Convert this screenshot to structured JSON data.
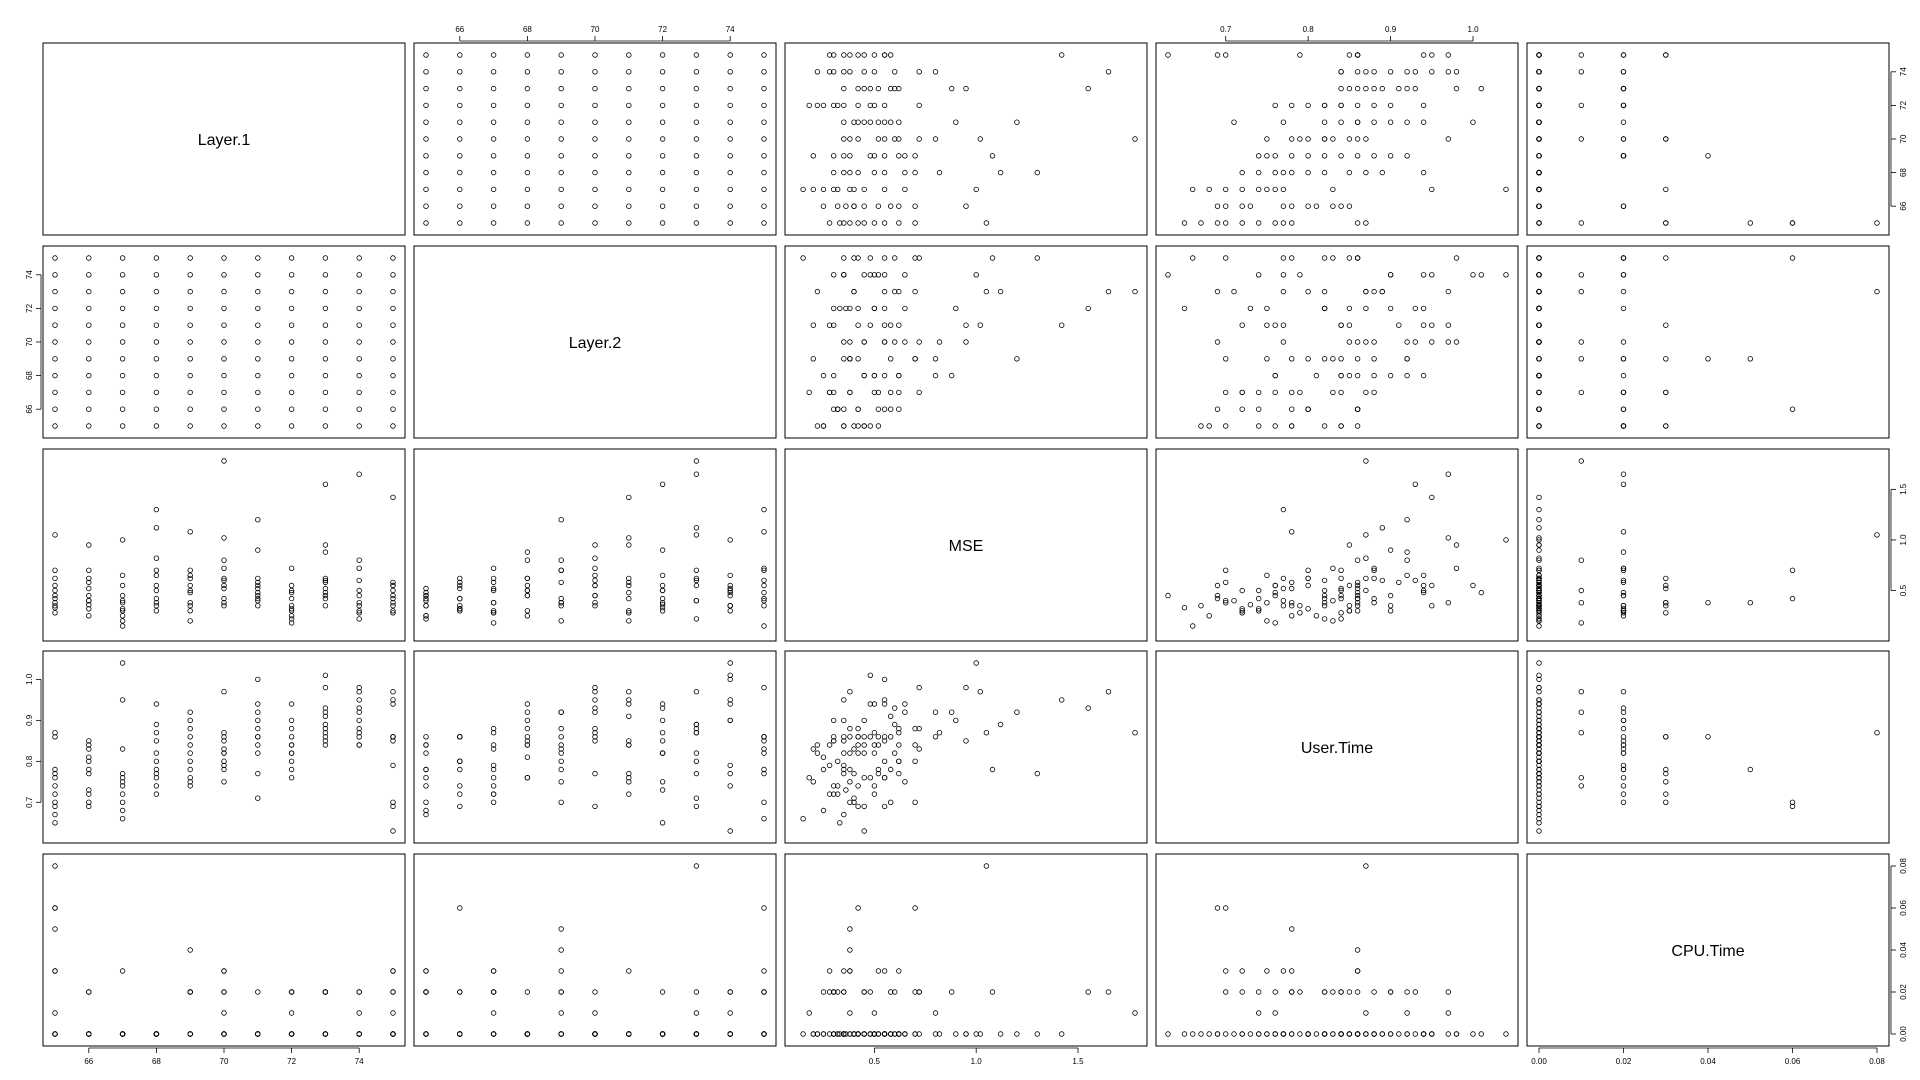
{
  "chart_data": {
    "type": "scatter-matrix",
    "variables": [
      "Layer.1",
      "Layer.2",
      "MSE",
      "User.Time",
      "CPU.Time"
    ],
    "ranges": {
      "Layer.1": [
        65,
        75
      ],
      "Layer.2": [
        65,
        75
      ],
      "MSE": [
        0.12,
        1.78
      ],
      "User.Time": [
        0.63,
        1.04
      ],
      "CPU.Time": [
        0,
        0.08
      ]
    },
    "ticks": {
      "Layer.1": [
        66,
        68,
        70,
        72,
        74
      ],
      "Layer.2": [
        66,
        68,
        70,
        72,
        74
      ],
      "MSE": [
        0.5,
        1.0,
        1.5
      ],
      "User.Time": [
        0.7,
        0.8,
        0.9,
        1.0
      ],
      "CPU.Time": [
        0.0,
        0.02,
        0.04,
        0.06,
        0.08
      ]
    },
    "tick_labels": {
      "Layer.1": [
        "66",
        "68",
        "70",
        "72",
        "74"
      ],
      "Layer.2": [
        "66",
        "68",
        "70",
        "72",
        "74"
      ],
      "MSE": [
        "0.5",
        "1.0",
        "1.5"
      ],
      "User.Time": [
        "0.7",
        "0.8",
        "0.9",
        "1.0"
      ],
      "CPU.Time": [
        "0.00",
        "0.02",
        "0.04",
        "0.06",
        "0.08"
      ]
    },
    "axis_sides": {
      "Layer.1": {
        "x": "bottom",
        "y": "right"
      },
      "Layer.2": {
        "x": "top",
        "y": "left"
      },
      "MSE": {
        "x": "bottom",
        "y": "right"
      },
      "User.Time": {
        "x": "top",
        "y": "left"
      },
      "CPU.Time": {
        "x": "bottom",
        "y": "right"
      }
    },
    "observations": [
      [
        65,
        65,
        0.35,
        0.67,
        0
      ],
      [
        65,
        66,
        0.42,
        0.69,
        0.06
      ],
      [
        65,
        67,
        0.28,
        0.72,
        0.03
      ],
      [
        65,
        68,
        0.55,
        0.76,
        0
      ],
      [
        65,
        69,
        0.38,
        0.78,
        0.05
      ],
      [
        65,
        70,
        0.45,
        0.86,
        0
      ],
      [
        65,
        71,
        0.62,
        0.77,
        0.03
      ],
      [
        65,
        72,
        0.33,
        0.65,
        0
      ],
      [
        65,
        73,
        1.05,
        0.87,
        0.08
      ],
      [
        65,
        74,
        0.5,
        0.74,
        0.01
      ],
      [
        65,
        75,
        0.7,
        0.7,
        0.06
      ],
      [
        66,
        65,
        0.4,
        0.7,
        0
      ],
      [
        66,
        66,
        0.32,
        0.72,
        0.02
      ],
      [
        66,
        67,
        0.58,
        0.78,
        0
      ],
      [
        66,
        68,
        0.25,
        0.81,
        0
      ],
      [
        66,
        69,
        0.7,
        0.84,
        0.02
      ],
      [
        66,
        70,
        0.45,
        0.69,
        0
      ],
      [
        66,
        71,
        0.95,
        0.85,
        0
      ],
      [
        66,
        72,
        0.36,
        0.73,
        0
      ],
      [
        66,
        73,
        0.62,
        0.8,
        0
      ],
      [
        66,
        74,
        0.52,
        0.77,
        0
      ],
      [
        66,
        75,
        0.4,
        0.83,
        0
      ],
      [
        67,
        65,
        0.25,
        0.68,
        0
      ],
      [
        67,
        66,
        0.32,
        0.74,
        0
      ],
      [
        67,
        67,
        0.38,
        0.7,
        0.03
      ],
      [
        67,
        68,
        0.45,
        0.76,
        0
      ],
      [
        67,
        69,
        0.2,
        0.83,
        0
      ],
      [
        67,
        70,
        0.55,
        0.95,
        0
      ],
      [
        67,
        71,
        0.3,
        0.72,
        0
      ],
      [
        67,
        72,
        0.65,
        0.75,
        0
      ],
      [
        67,
        73,
        0.4,
        0.77,
        0
      ],
      [
        67,
        74,
        1.0,
        1.04,
        0
      ],
      [
        67,
        75,
        0.15,
        0.66,
        0
      ],
      [
        68,
        65,
        0.42,
        0.74,
        0
      ],
      [
        68,
        66,
        0.35,
        0.78,
        0
      ],
      [
        68,
        67,
        0.5,
        0.72,
        0
      ],
      [
        68,
        68,
        0.3,
        0.85,
        0
      ],
      [
        68,
        69,
        0.7,
        0.8,
        0
      ],
      [
        68,
        70,
        0.82,
        0.87,
        0
      ],
      [
        68,
        71,
        0.55,
        0.76,
        0
      ],
      [
        68,
        72,
        0.38,
        0.82,
        0
      ],
      [
        68,
        73,
        1.12,
        0.89,
        0
      ],
      [
        68,
        74,
        0.65,
        0.94,
        0
      ],
      [
        68,
        75,
        1.3,
        0.77,
        0
      ],
      [
        69,
        65,
        0.48,
        0.76,
        0.02
      ],
      [
        69,
        66,
        0.55,
        0.8,
        0
      ],
      [
        69,
        67,
        0.3,
        0.74,
        0.02
      ],
      [
        69,
        68,
        0.62,
        0.84,
        0
      ],
      [
        69,
        69,
        0.38,
        0.86,
        0.04
      ],
      [
        69,
        70,
        0.65,
        0.92,
        0
      ],
      [
        69,
        71,
        0.2,
        0.75,
        0
      ],
      [
        69,
        72,
        0.5,
        0.82,
        0
      ],
      [
        69,
        73,
        0.7,
        0.88,
        0
      ],
      [
        69,
        74,
        0.35,
        0.9,
        0.02
      ],
      [
        69,
        75,
        1.08,
        0.78,
        0.02
      ],
      [
        70,
        65,
        0.52,
        0.78,
        0.03
      ],
      [
        70,
        66,
        0.62,
        0.8,
        0
      ],
      [
        70,
        67,
        0.72,
        0.83,
        0.02
      ],
      [
        70,
        68,
        0.8,
        0.86,
        0
      ],
      [
        70,
        69,
        0.38,
        0.75,
        0.03
      ],
      [
        70,
        70,
        0.55,
        0.85,
        0
      ],
      [
        70,
        71,
        1.02,
        0.97,
        0
      ],
      [
        70,
        72,
        0.42,
        0.82,
        0
      ],
      [
        70,
        73,
        1.78,
        0.87,
        0.01
      ],
      [
        70,
        74,
        0.35,
        0.79,
        0
      ],
      [
        70,
        75,
        0.6,
        0.82,
        0.02
      ],
      [
        71,
        65,
        0.45,
        0.82,
        0.02
      ],
      [
        71,
        66,
        0.58,
        0.86,
        0
      ],
      [
        71,
        67,
        0.52,
        0.84,
        0
      ],
      [
        71,
        68,
        0.62,
        0.88,
        0
      ],
      [
        71,
        69,
        1.2,
        0.92,
        0
      ],
      [
        71,
        70,
        0.35,
        0.77,
        0
      ],
      [
        71,
        71,
        0.48,
        0.94,
        0
      ],
      [
        71,
        72,
        0.9,
        0.9,
        0
      ],
      [
        71,
        73,
        0.4,
        0.71,
        0
      ],
      [
        71,
        74,
        0.55,
        1.0,
        0
      ],
      [
        71,
        75,
        0.42,
        0.86,
        0
      ],
      [
        72,
        65,
        0.25,
        0.78,
        0.02
      ],
      [
        72,
        66,
        0.32,
        0.8,
        0
      ],
      [
        72,
        67,
        0.18,
        0.76,
        0.01
      ],
      [
        72,
        68,
        0.5,
        0.84,
        0
      ],
      [
        72,
        69,
        0.35,
        0.82,
        0
      ],
      [
        72,
        70,
        0.72,
        0.88,
        0.02
      ],
      [
        72,
        71,
        0.42,
        0.84,
        0
      ],
      [
        72,
        72,
        0.55,
        0.94,
        0
      ],
      [
        72,
        73,
        0.22,
        0.82,
        0
      ],
      [
        72,
        74,
        0.3,
        0.9,
        0.02
      ],
      [
        72,
        75,
        0.48,
        0.86,
        0
      ],
      [
        73,
        65,
        0.45,
        0.84,
        0.02
      ],
      [
        73,
        66,
        0.52,
        0.86,
        0
      ],
      [
        73,
        67,
        0.62,
        0.87,
        0
      ],
      [
        73,
        68,
        0.88,
        0.92,
        0.02
      ],
      [
        73,
        69,
        0.42,
        0.88,
        0
      ],
      [
        73,
        70,
        0.95,
        0.98,
        0
      ],
      [
        73,
        71,
        0.58,
        0.91,
        0
      ],
      [
        73,
        72,
        1.55,
        0.93,
        0.02
      ],
      [
        73,
        73,
        0.6,
        0.89,
        0
      ],
      [
        73,
        74,
        0.48,
        1.01,
        0
      ],
      [
        73,
        75,
        0.35,
        0.85,
        0.02
      ],
      [
        74,
        65,
        0.22,
        0.84,
        0
      ],
      [
        74,
        66,
        0.3,
        0.86,
        0.02
      ],
      [
        74,
        67,
        0.38,
        0.88,
        0
      ],
      [
        74,
        68,
        0.45,
        0.9,
        0
      ],
      [
        74,
        69,
        0.8,
        0.92,
        0.01
      ],
      [
        74,
        70,
        0.6,
        0.93,
        0
      ],
      [
        74,
        71,
        0.28,
        0.84,
        0
      ],
      [
        74,
        72,
        0.5,
        0.87,
        0
      ],
      [
        74,
        73,
        1.65,
        0.97,
        0.02
      ],
      [
        74,
        74,
        0.35,
        0.95,
        0
      ],
      [
        74,
        75,
        0.72,
        0.98,
        0
      ],
      [
        75,
        65,
        0.35,
        0.86,
        0.03
      ],
      [
        75,
        66,
        0.42,
        0.86,
        0
      ],
      [
        75,
        67,
        0.28,
        0.79,
        0.02
      ],
      [
        75,
        68,
        0.5,
        0.94,
        0
      ],
      [
        75,
        69,
        0.58,
        0.7,
        0.02
      ],
      [
        75,
        70,
        0.38,
        0.97,
        0.01
      ],
      [
        75,
        71,
        1.42,
        0.95,
        0
      ],
      [
        75,
        72,
        0.3,
        0.85,
        0
      ],
      [
        75,
        73,
        0.55,
        0.69,
        0
      ],
      [
        75,
        74,
        0.45,
        0.63,
        0
      ],
      [
        75,
        75,
        0.55,
        0.86,
        0.03
      ]
    ]
  }
}
